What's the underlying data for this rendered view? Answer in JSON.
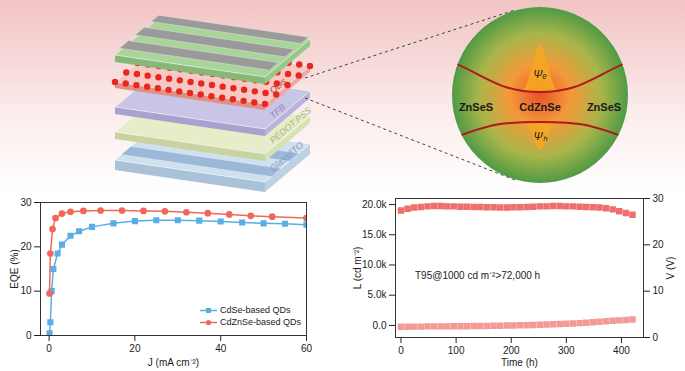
{
  "diagram": {
    "device_layers": [
      "Glass/ITO",
      "PEDOT:PSS",
      "TFB",
      "QDs"
    ],
    "quantum_dot": {
      "core": "CdZnSe",
      "shell_left": "ZnSeS",
      "shell_right": "ZnSeS",
      "electron_wavefunction": "Ψₑ",
      "hole_wavefunction": "Ψₕ"
    }
  },
  "chart_data": [
    {
      "type": "line",
      "xlabel": "J (mA cm⁻²)",
      "ylabel": "EQE (%)",
      "xlim": [
        -2,
        60
      ],
      "xticks": [
        0,
        20,
        40,
        60
      ],
      "ylim": [
        0,
        30
      ],
      "yticks": [
        0,
        10,
        20,
        30
      ],
      "legend": "bottom right",
      "series": [
        {
          "name": "CdSe-based QDs",
          "color": "#5aaee3",
          "marker": "square",
          "x": [
            0.1,
            0.3,
            0.6,
            1,
            2,
            3,
            5,
            7,
            10,
            15,
            20,
            25,
            30,
            35,
            40,
            45,
            50,
            55,
            60
          ],
          "values": [
            0.5,
            3,
            10,
            15,
            18.5,
            20.5,
            22.5,
            23.5,
            24.5,
            25.3,
            25.8,
            26,
            26,
            25.9,
            25.7,
            25.5,
            25.3,
            25.2,
            25
          ]
        },
        {
          "name": "CdZnSe-based QDs",
          "color": "#f0685a",
          "marker": "circle",
          "x": [
            0.1,
            0.3,
            0.8,
            1.5,
            3,
            5,
            8,
            12,
            17,
            22,
            27,
            32,
            37,
            42,
            47,
            52,
            60
          ],
          "values": [
            9.5,
            18.5,
            24,
            26.5,
            27.5,
            27.9,
            28.1,
            28.2,
            28.2,
            28.1,
            28,
            27.8,
            27.6,
            27.3,
            27,
            26.8,
            26.5
          ]
        }
      ]
    },
    {
      "type": "scatter",
      "xlabel": "Time (h)",
      "ylabel": "L (cd m⁻²)",
      "y2label": "V (V)",
      "annotations": [
        "T95@1000 cd m⁻²>72,000 h"
      ],
      "xlim": [
        -10,
        440
      ],
      "xticks": [
        0,
        100,
        200,
        300,
        400
      ],
      "ylim": [
        -2000,
        21000
      ],
      "yticks": [
        {
          "value": 0,
          "label": "0.0"
        },
        {
          "value": 5000,
          "label": "5.0k"
        },
        {
          "value": 10000,
          "label": "10.0k"
        },
        {
          "value": 15000,
          "label": "15.0k"
        },
        {
          "value": 20000,
          "label": "20.0k"
        }
      ],
      "y2lim": [
        0,
        30
      ],
      "y2ticks": [
        0,
        10,
        20,
        30
      ],
      "series": [
        {
          "color": "#ef6f6c",
          "marker": "square",
          "x": [
            0,
            12,
            24,
            36,
            48,
            60,
            72,
            84,
            96,
            108,
            120,
            132,
            144,
            156,
            168,
            180,
            192,
            204,
            216,
            228,
            240,
            252,
            264,
            276,
            288,
            300,
            312,
            324,
            336,
            348,
            360,
            372,
            384,
            396,
            408,
            420
          ],
          "values": [
            19000,
            19300,
            19500,
            19600,
            19700,
            19750,
            19750,
            19700,
            19700,
            19650,
            19650,
            19600,
            19600,
            19550,
            19550,
            19500,
            19500,
            19550,
            19550,
            19600,
            19650,
            19700,
            19700,
            19750,
            19750,
            19700,
            19700,
            19650,
            19600,
            19550,
            19500,
            19400,
            19200,
            18900,
            18600,
            18300
          ]
        },
        {
          "color": "#f39a97",
          "marker": "square",
          "axis": "y2",
          "x": [
            0,
            12,
            24,
            36,
            48,
            60,
            72,
            84,
            96,
            108,
            120,
            132,
            144,
            156,
            168,
            180,
            192,
            204,
            216,
            228,
            240,
            252,
            264,
            276,
            288,
            300,
            312,
            324,
            336,
            348,
            360,
            372,
            384,
            396,
            408,
            420
          ],
          "values": [
            2.3,
            2.3,
            2.35,
            2.35,
            2.4,
            2.4,
            2.4,
            2.4,
            2.45,
            2.45,
            2.45,
            2.5,
            2.5,
            2.5,
            2.55,
            2.55,
            2.6,
            2.6,
            2.65,
            2.65,
            2.7,
            2.75,
            2.8,
            2.85,
            2.9,
            2.95,
            3.0,
            3.1,
            3.2,
            3.3,
            3.4,
            3.5,
            3.6,
            3.7,
            3.8,
            3.9
          ]
        }
      ]
    }
  ]
}
